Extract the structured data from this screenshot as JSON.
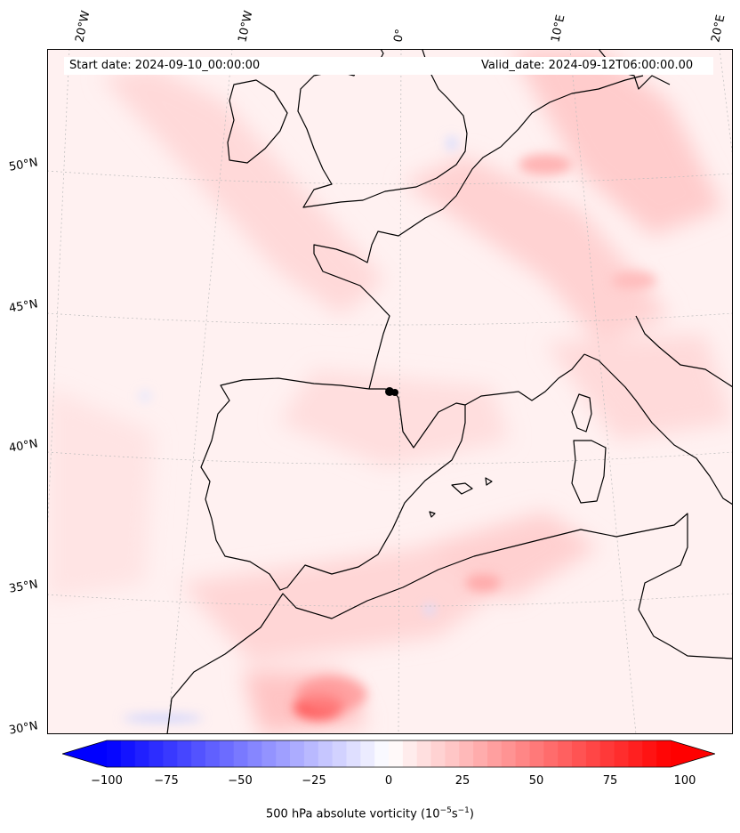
{
  "map": {
    "start_date_label": "Start date: 2024-09-10_00:00:00",
    "valid_date_label": "Valid_date: 2024-09-12T06:00:00.00",
    "lon_labels": [
      "20°W",
      "10°W",
      "0°",
      "10°E",
      "20°E"
    ],
    "lat_labels": [
      "50°N",
      "45°N",
      "40°N",
      "35°N",
      "30°N"
    ]
  },
  "colorbar": {
    "ticks": [
      "−100",
      "−75",
      "−50",
      "−25",
      "0",
      "25",
      "50",
      "75",
      "100"
    ],
    "label_text": "500 hPa absolute vorticity (10",
    "label_exp1": "−5",
    "label_mid": "s",
    "label_exp2": "−1",
    "label_end": ")",
    "min_color": "#0000ff",
    "max_color": "#ff0000",
    "range": [
      -100,
      100
    ],
    "extend": "both"
  },
  "colors": {
    "ocean_background": "#fff5f5",
    "coastline": "#000000",
    "gridline": "#bbbbbb"
  }
}
